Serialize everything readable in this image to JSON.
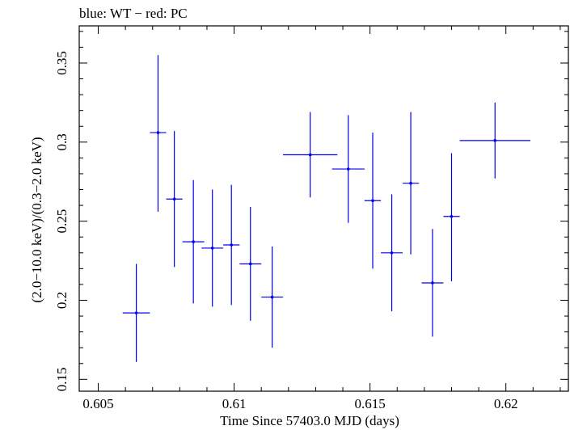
{
  "chart_data": {
    "type": "scatter",
    "title": "blue: WT − red: PC",
    "xlabel": "Time Since 57403.0 MJD (days)",
    "ylabel": "(2.0−10.0 keV)/(0.3−2.0 keV)",
    "xlim": [
      0.6043,
      0.6223
    ],
    "ylim": [
      0.1425,
      0.3735
    ],
    "xticks": [
      0.605,
      0.61,
      0.615,
      0.62
    ],
    "xtick_labels": [
      "0.605",
      "0.61",
      "0.615",
      "0.62"
    ],
    "yticks": [
      0.15,
      0.2,
      0.25,
      0.3,
      0.35
    ],
    "ytick_labels": [
      "0.15",
      "0.2",
      "0.25",
      "0.3",
      "0.35"
    ],
    "grid": false,
    "series": [
      {
        "name": "WT",
        "color": "#0000ee",
        "points": [
          {
            "x": 0.6064,
            "xerr": 0.0005,
            "y": 0.192,
            "yerr_low": 0.031,
            "yerr_high": 0.031
          },
          {
            "x": 0.6072,
            "xerr": 0.0003,
            "y": 0.306,
            "yerr_low": 0.05,
            "yerr_high": 0.049
          },
          {
            "x": 0.6078,
            "xerr": 0.0003,
            "y": 0.264,
            "yerr_low": 0.043,
            "yerr_high": 0.043
          },
          {
            "x": 0.6085,
            "xerr": 0.0004,
            "y": 0.237,
            "yerr_low": 0.039,
            "yerr_high": 0.039
          },
          {
            "x": 0.6092,
            "xerr": 0.0004,
            "y": 0.233,
            "yerr_low": 0.037,
            "yerr_high": 0.037
          },
          {
            "x": 0.6099,
            "xerr": 0.0003,
            "y": 0.235,
            "yerr_low": 0.038,
            "yerr_high": 0.038
          },
          {
            "x": 0.6106,
            "xerr": 0.0004,
            "y": 0.223,
            "yerr_low": 0.036,
            "yerr_high": 0.036
          },
          {
            "x": 0.6114,
            "xerr": 0.0004,
            "y": 0.202,
            "yerr_low": 0.032,
            "yerr_high": 0.032
          },
          {
            "x": 0.6128,
            "xerr": 0.001,
            "y": 0.292,
            "yerr_low": 0.027,
            "yerr_high": 0.027
          },
          {
            "x": 0.6142,
            "xerr": 0.0006,
            "y": 0.283,
            "yerr_low": 0.034,
            "yerr_high": 0.034
          },
          {
            "x": 0.6151,
            "xerr": 0.0003,
            "y": 0.263,
            "yerr_low": 0.043,
            "yerr_high": 0.043
          },
          {
            "x": 0.6158,
            "xerr": 0.0004,
            "y": 0.23,
            "yerr_low": 0.037,
            "yerr_high": 0.037
          },
          {
            "x": 0.6165,
            "xerr": 0.0003,
            "y": 0.274,
            "yerr_low": 0.045,
            "yerr_high": 0.045
          },
          {
            "x": 0.6173,
            "xerr": 0.0004,
            "y": 0.211,
            "yerr_low": 0.034,
            "yerr_high": 0.034
          },
          {
            "x": 0.618,
            "xerr": 0.0003,
            "y": 0.253,
            "yerr_low": 0.041,
            "yerr_high": 0.04
          },
          {
            "x": 0.6196,
            "xerr": 0.0013,
            "y": 0.301,
            "yerr_low": 0.024,
            "yerr_high": 0.024
          }
        ]
      }
    ]
  }
}
